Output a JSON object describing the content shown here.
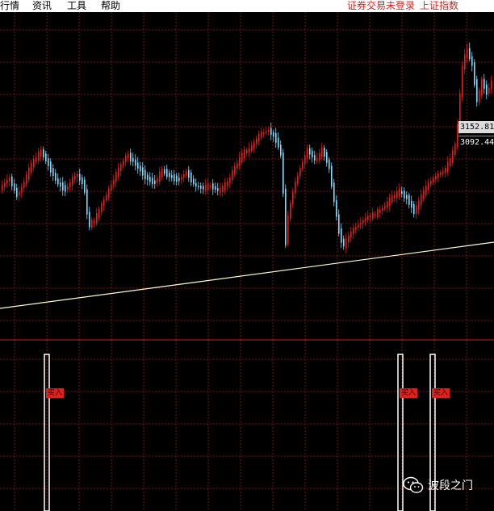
{
  "menubar": {
    "items": [
      "行情",
      "资讯",
      "工具",
      "帮助"
    ],
    "status_text": "证券交易未登录",
    "index_name": "上证指数"
  },
  "price_labels": {
    "top": "3152.81",
    "bottom": "3092.44"
  },
  "signals": {
    "label": "买入",
    "count": 3
  },
  "watermark": {
    "text": "波段之门",
    "icon": "wechat-icon"
  },
  "colors": {
    "background": "#000000",
    "grid": "#7a1212",
    "up_candle": "#e0201c",
    "down_candle": "#7fdcff",
    "trendline": "#ffffcc",
    "panel_divider": "#c8201c",
    "signal_bar": "#ffffff"
  }
}
